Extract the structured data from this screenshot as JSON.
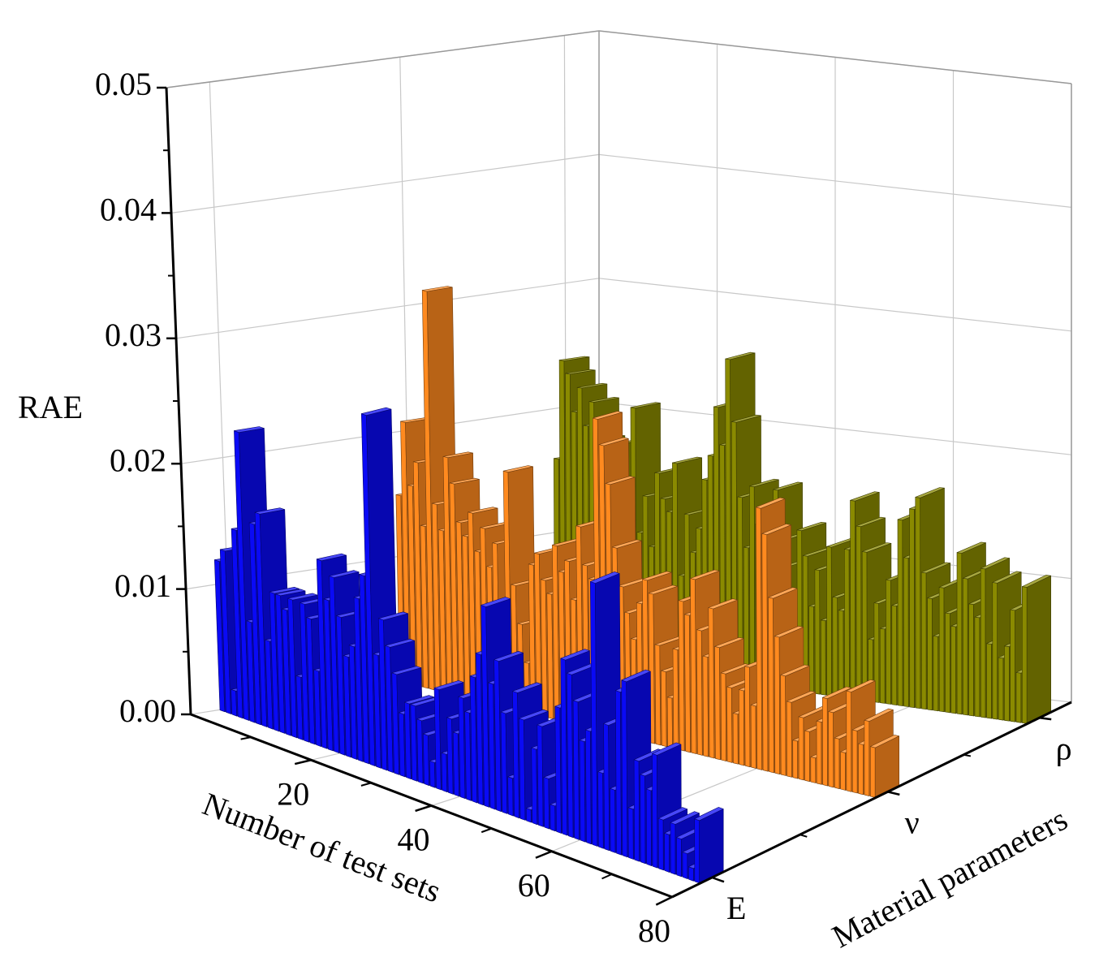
{
  "chart_data": {
    "type": "bar3d",
    "xlabel": "Number of test sets",
    "ylabel": "RAE",
    "zlabel": "Material parameters",
    "x": [
      1,
      2,
      3,
      4,
      5,
      6,
      7,
      8,
      9,
      10,
      11,
      12,
      13,
      14,
      15,
      16,
      17,
      18,
      19,
      20,
      21,
      22,
      23,
      24,
      25,
      26,
      27,
      28,
      29,
      30,
      31,
      32,
      33,
      34,
      35,
      36,
      37,
      38,
      39,
      40,
      41,
      42,
      43,
      44,
      45,
      46,
      47,
      48,
      49,
      50,
      51,
      52,
      53,
      54,
      55,
      56,
      57,
      58,
      59,
      60,
      61,
      62,
      63,
      64,
      65,
      66,
      67,
      68,
      69,
      70,
      71,
      72,
      73,
      74,
      75,
      76,
      77,
      78,
      79,
      80
    ],
    "xlim": [
      0,
      80
    ],
    "xticks": [
      20,
      40,
      60,
      80
    ],
    "ylim": [
      0,
      0.05
    ],
    "yticks": [
      {
        "value": 0,
        "label": "0.00"
      },
      0.01,
      0.02,
      0.03,
      0.04,
      0.05
    ],
    "grid": true,
    "series": [
      {
        "name": "E",
        "color": "#0a0af5",
        "values": [
          0.012,
          0.013,
          0.002,
          0.015,
          0.023,
          0.008,
          0.016,
          0.017,
          0.007,
          0.011,
          0.011,
          0.01,
          0.011,
          0.005,
          0.011,
          0.01,
          0.006,
          0.015,
          0.012,
          0.014,
          0.011,
          0.008,
          0.009,
          0.013,
          0.015,
          0.028,
          0.009,
          0.012,
          0.01,
          0.008,
          0.005,
          0.006,
          0.006,
          0.005,
          0.004,
          0.002,
          0.008,
          0.003,
          0.006,
          0.005,
          0.008,
          0.007,
          0.01,
          0.012,
          0.016,
          0.01,
          0.012,
          0.008,
          0.003,
          0.01,
          0.008,
          0.001,
          0.006,
          0.008,
          0.004,
          0.002,
          0.01,
          0.014,
          0.013,
          0.011,
          0.008,
          0.009,
          0.021,
          0.006,
          0.01,
          0.005,
          0.013,
          0.014,
          0.004,
          0.008,
          0.007,
          0.006,
          0.009,
          0.004,
          0.003,
          0.004,
          0.003,
          0.002,
          0.001,
          0.005
        ]
      },
      {
        "name": "ν",
        "color": "#ff8a1f",
        "values": [
          0.015,
          0.021,
          0.016,
          0.018,
          0.013,
          0.032,
          0.015,
          0.013,
          0.019,
          0.017,
          0.014,
          0.013,
          0.015,
          0.012,
          0.014,
          0.011,
          0.013,
          0.008,
          0.019,
          0.01,
          0.007,
          0.004,
          0.012,
          0.013,
          0.011,
          0.01,
          0.014,
          0.012,
          0.013,
          0.01,
          0.016,
          0.013,
          0.012,
          0.025,
          0.023,
          0.02,
          0.015,
          0.012,
          0.01,
          0.008,
          0.011,
          0.013,
          0.012,
          0.008,
          0.006,
          0.004,
          0.008,
          0.012,
          0.011,
          0.014,
          0.01,
          0.008,
          0.012,
          0.009,
          0.007,
          0.006,
          0.004,
          0.006,
          0.008,
          0.005,
          0.021,
          0.019,
          0.014,
          0.011,
          0.008,
          0.006,
          0.003,
          0.005,
          0.004,
          0.002,
          0.005,
          0.007,
          0.006,
          0.004,
          0.003,
          0.008,
          0.005,
          0.004,
          0.006,
          0.004
        ]
      },
      {
        "name": "ρ",
        "color": "#8a8a00",
        "values": [
          0.016,
          0.024,
          0.023,
          0.02,
          0.022,
          0.019,
          0.021,
          0.018,
          0.014,
          0.016,
          0.012,
          0.018,
          0.013,
          0.021,
          0.011,
          0.014,
          0.01,
          0.016,
          0.014,
          0.013,
          0.017,
          0.008,
          0.013,
          0.01,
          0.012,
          0.016,
          0.018,
          0.022,
          0.019,
          0.026,
          0.021,
          0.015,
          0.011,
          0.016,
          0.013,
          0.012,
          0.009,
          0.016,
          0.012,
          0.01,
          0.008,
          0.013,
          0.011,
          0.007,
          0.01,
          0.006,
          0.012,
          0.008,
          0.007,
          0.012,
          0.016,
          0.014,
          0.012,
          0.005,
          0.008,
          0.006,
          0.01,
          0.008,
          0.015,
          0.012,
          0.016,
          0.017,
          0.011,
          0.009,
          0.006,
          0.01,
          0.008,
          0.007,
          0.013,
          0.011,
          0.009,
          0.008,
          0.012,
          0.006,
          0.011,
          0.005,
          0.006,
          0.009,
          0.004,
          0.011
        ]
      }
    ]
  }
}
